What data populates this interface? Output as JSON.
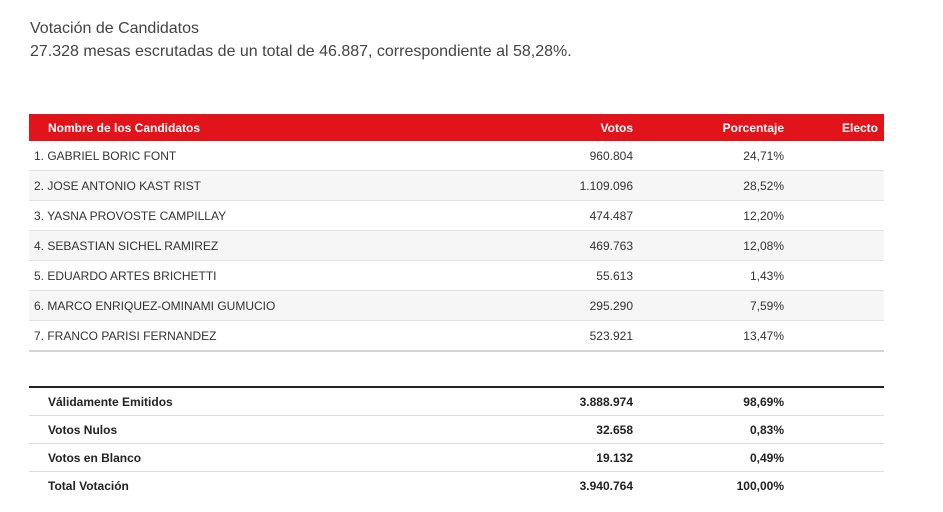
{
  "header": {
    "title": "Votación de Candidatos",
    "subtitle": "27.328 mesas escrutadas de un total de 46.887, correspondiente al 58,28%."
  },
  "table": {
    "columns": [
      "Nombre de los Candidatos",
      "Votos",
      "Porcentaje",
      "Electo"
    ],
    "header_color": "#e1141b",
    "rows": [
      {
        "name": "1. GABRIEL BORIC FONT",
        "votes": "960.804",
        "pct": "24,71%",
        "elected": ""
      },
      {
        "name": "2. JOSE ANTONIO KAST RIST",
        "votes": "1.109.096",
        "pct": "28,52%",
        "elected": ""
      },
      {
        "name": "3. YASNA PROVOSTE CAMPILLAY",
        "votes": "474.487",
        "pct": "12,20%",
        "elected": ""
      },
      {
        "name": "4. SEBASTIAN SICHEL RAMIREZ",
        "votes": "469.763",
        "pct": "12,08%",
        "elected": ""
      },
      {
        "name": "5. EDUARDO ARTES BRICHETTI",
        "votes": "55.613",
        "pct": "1,43%",
        "elected": ""
      },
      {
        "name": "6. MARCO ENRIQUEZ-OMINAMI GUMUCIO",
        "votes": "295.290",
        "pct": "7,59%",
        "elected": ""
      },
      {
        "name": "7. FRANCO PARISI FERNANDEZ",
        "votes": "523.921",
        "pct": "13,47%",
        "elected": ""
      }
    ]
  },
  "totals": [
    {
      "label": "Válidamente Emitidos",
      "votes": "3.888.974",
      "pct": "98,69%"
    },
    {
      "label": "Votos Nulos",
      "votes": "32.658",
      "pct": "0,83%"
    },
    {
      "label": "Votos en Blanco",
      "votes": "19.132",
      "pct": "0,49%"
    },
    {
      "label": "Total Votación",
      "votes": "3.940.764",
      "pct": "100,00%"
    }
  ]
}
